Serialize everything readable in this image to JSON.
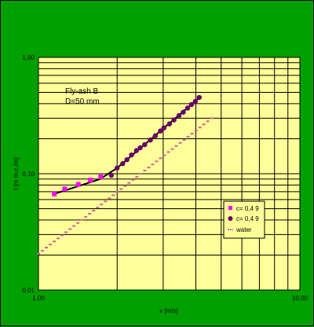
{
  "chart_data": {
    "type": "scatter",
    "title": "",
    "xlabel": "v [m/s]",
    "ylabel": "I [m m.c./m]",
    "x_scale": "log",
    "y_scale": "log",
    "xlim": [
      1,
      10
    ],
    "ylim": [
      0.01,
      1
    ],
    "x_tick_labels": [
      "1,00",
      "10,00"
    ],
    "y_tick_labels": [
      "0,01",
      "0,10",
      "1,00"
    ],
    "grid": true,
    "legend_position": "right",
    "annotations": [
      "Fly-ash B",
      "D=50 mm"
    ],
    "colors": {
      "background": "#00a000",
      "plot_area": "#ffff99",
      "series1": "#ff00ff",
      "series2": "#660066",
      "fit_line": "#000000",
      "water": "#cc6699"
    },
    "series": [
      {
        "name": "c= 0,4 9",
        "marker": "square",
        "points": [
          [
            1.15,
            0.067
          ],
          [
            1.26,
            0.074
          ],
          [
            1.42,
            0.081
          ],
          [
            1.58,
            0.088
          ],
          [
            1.73,
            0.094
          ]
        ]
      },
      {
        "name": "c= 0,4 9",
        "marker": "circle",
        "points": [
          [
            1.9,
            0.097
          ],
          [
            2.0,
            0.112
          ],
          [
            2.1,
            0.122
          ],
          [
            2.18,
            0.132
          ],
          [
            2.27,
            0.145
          ],
          [
            2.37,
            0.158
          ],
          [
            2.45,
            0.167
          ],
          [
            2.55,
            0.178
          ],
          [
            2.68,
            0.195
          ],
          [
            2.8,
            0.212
          ],
          [
            2.93,
            0.233
          ],
          [
            3.02,
            0.248
          ],
          [
            3.17,
            0.268
          ],
          [
            3.3,
            0.29
          ],
          [
            3.45,
            0.316
          ],
          [
            3.58,
            0.338
          ],
          [
            3.72,
            0.367
          ],
          [
            3.85,
            0.393
          ],
          [
            3.98,
            0.418
          ],
          [
            4.12,
            0.452
          ]
        ]
      },
      {
        "name": "water",
        "marker": "dash",
        "points": [
          [
            1.0,
            0.0205
          ],
          [
            4.6,
            0.3
          ]
        ]
      }
    ],
    "fit_line": [
      [
        1.15,
        0.067
      ],
      [
        1.72,
        0.09
      ],
      [
        2.0,
        0.112
      ],
      [
        4.2,
        0.465
      ]
    ]
  }
}
